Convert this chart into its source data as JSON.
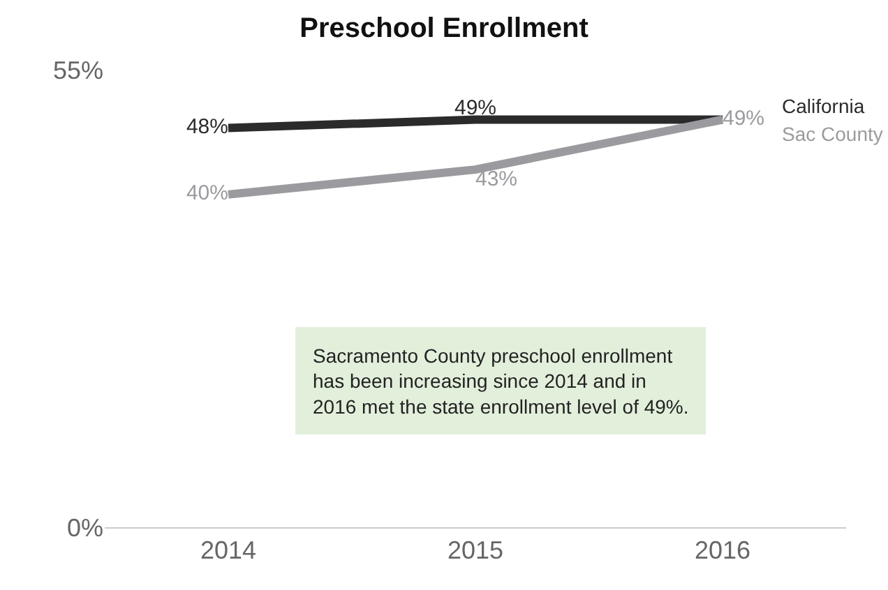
{
  "chart_data": {
    "type": "line",
    "title": "Preschool Enrollment",
    "categories": [
      "2014",
      "2015",
      "2016"
    ],
    "series": [
      {
        "name": "California",
        "color": "#2b2b2b",
        "values": [
          48,
          49,
          49
        ],
        "value_labels": [
          "48%",
          "49%",
          null
        ]
      },
      {
        "name": "Sac County",
        "color": "#9b9b9f",
        "values": [
          40,
          43,
          49
        ],
        "value_labels": [
          "40%",
          "43%",
          "49%"
        ]
      }
    ],
    "ylim": [
      0,
      55
    ],
    "yticks": [
      {
        "value": 0,
        "label": "0%"
      },
      {
        "value": 55,
        "label": "55%"
      }
    ],
    "grid": false,
    "legend": false,
    "marker": "none",
    "line_style": "solid",
    "annotations": [
      "Sacramento County preschool enrollment\nhas been increasing since 2014 and in\n2016 met the state enrollment level of 49%."
    ]
  }
}
